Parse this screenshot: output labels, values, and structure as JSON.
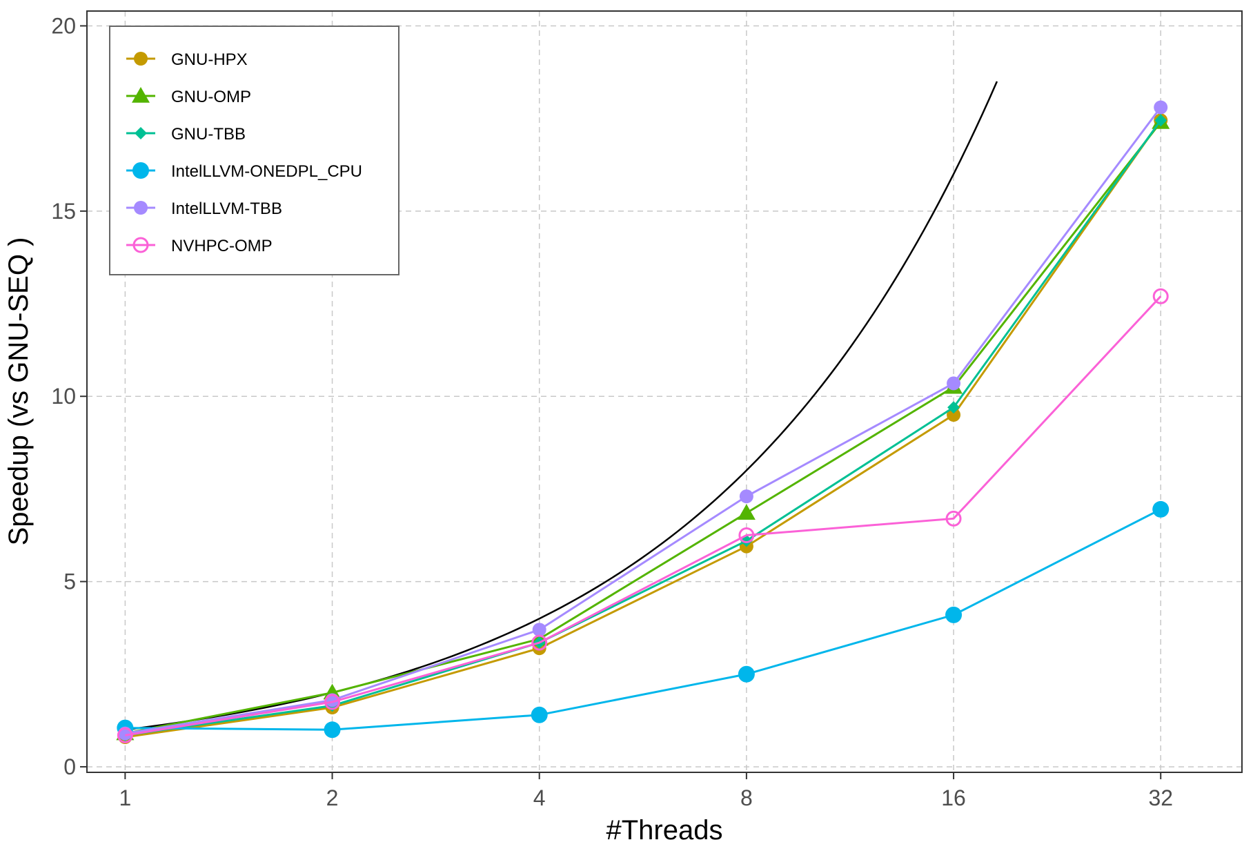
{
  "chart_data": {
    "type": "line",
    "xlabel": "#Threads",
    "ylabel": "Speedup (vs  GNU-SEQ )",
    "x_scale": "log2",
    "x": [
      1,
      2,
      4,
      8,
      16,
      32
    ],
    "x_tick_labels": [
      "1",
      "2",
      "4",
      "8",
      "16",
      "32"
    ],
    "y_ticks": [
      0,
      5,
      10,
      15,
      20
    ],
    "y_tick_labels": [
      "0",
      "5",
      "10",
      "15",
      "20"
    ],
    "xlim": [
      0.88,
      42
    ],
    "ylim": [
      -0.15,
      20.4
    ],
    "grid": true,
    "legend_position": "top-left",
    "series": [
      {
        "name": "GNU-HPX",
        "color": "#C49A00",
        "marker": "circle",
        "values": [
          0.8,
          1.6,
          3.2,
          5.95,
          9.5,
          17.45
        ]
      },
      {
        "name": "GNU-OMP",
        "color": "#53B400",
        "marker": "triangle",
        "values": [
          0.9,
          2.0,
          3.45,
          6.85,
          10.25,
          17.4
        ]
      },
      {
        "name": "GNU-TBB",
        "color": "#00C094",
        "marker": "diamond",
        "values": [
          0.85,
          1.65,
          3.35,
          6.1,
          9.7,
          17.45
        ]
      },
      {
        "name": "IntelLLVM-ONEDPL_CPU",
        "color": "#00B6EB",
        "marker": "circle-large",
        "values": [
          1.05,
          1.0,
          1.4,
          2.5,
          4.1,
          6.95
        ]
      },
      {
        "name": "IntelLLVM-TBB",
        "color": "#A58AFF",
        "marker": "circle",
        "values": [
          0.9,
          1.8,
          3.7,
          7.3,
          10.35,
          17.8
        ]
      },
      {
        "name": "NVHPC-OMP",
        "color": "#FB61D7",
        "marker": "open-circle",
        "values": [
          0.85,
          1.75,
          3.35,
          6.25,
          6.7,
          12.7
        ]
      }
    ],
    "reference_curve": {
      "color": "#000000",
      "formula": "y = x",
      "x_range": [
        1,
        18.5
      ]
    }
  }
}
